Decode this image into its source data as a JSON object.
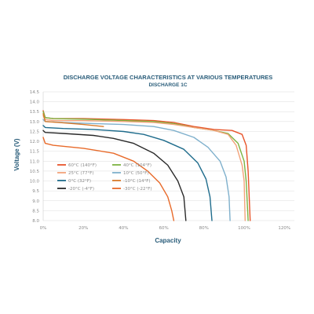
{
  "chart_data": {
    "type": "line",
    "title": "DISCHARGE VOLTAGE CHARACTERISTICS AT VARIOUS TEMPERATURES",
    "subtitle": "DISCHARGE 1C",
    "xlabel": "Capacity",
    "ylabel": "Voltage (V)",
    "xlim": [
      0,
      125
    ],
    "ylim": [
      8.0,
      14.5
    ],
    "x_ticks": [
      "0%",
      "20%",
      "40%",
      "60%",
      "80%",
      "100%",
      "120%"
    ],
    "x_tick_values": [
      0,
      20,
      40,
      60,
      80,
      100,
      120
    ],
    "y_ticks": [
      "8.0",
      "8.5",
      "9.0",
      "9.5",
      "10.0",
      "10.5",
      "11.0",
      "11.5",
      "12.0",
      "12.5",
      "13.0",
      "13.5",
      "14.0",
      "14.5"
    ],
    "y_tick_values": [
      8.0,
      8.5,
      9.0,
      9.5,
      10.0,
      10.5,
      11.0,
      11.5,
      12.0,
      12.5,
      13.0,
      13.5,
      14.0,
      14.5
    ],
    "grid": "horizontal",
    "legend_position": "bottom-left",
    "series": [
      {
        "name": "60°C (140°F)",
        "color": "#e8542a",
        "points": [
          [
            0,
            13.55
          ],
          [
            1,
            13.2
          ],
          [
            5,
            13.15
          ],
          [
            20,
            13.15
          ],
          [
            40,
            13.1
          ],
          [
            55,
            13.05
          ],
          [
            65,
            12.95
          ],
          [
            75,
            12.75
          ],
          [
            85,
            12.6
          ],
          [
            94,
            12.55
          ],
          [
            99,
            12.35
          ],
          [
            101,
            11.8
          ],
          [
            102,
            10.5
          ],
          [
            103,
            8.0
          ]
        ]
      },
      {
        "name": "40°C (104°F)",
        "color": "#7db342",
        "points": [
          [
            0,
            13.5
          ],
          [
            1,
            13.2
          ],
          [
            5,
            13.15
          ],
          [
            20,
            13.12
          ],
          [
            40,
            13.05
          ],
          [
            55,
            13.0
          ],
          [
            65,
            12.9
          ],
          [
            75,
            12.7
          ],
          [
            85,
            12.55
          ],
          [
            92,
            12.4
          ],
          [
            97,
            11.9
          ],
          [
            100,
            11.0
          ],
          [
            101,
            10.0
          ],
          [
            102,
            8.0
          ]
        ]
      },
      {
        "name": "25°C (77°F)",
        "color": "#f3a37a",
        "points": [
          [
            0,
            13.3
          ],
          [
            1,
            13.1
          ],
          [
            5,
            13.05
          ],
          [
            20,
            13.05
          ],
          [
            40,
            13.0
          ],
          [
            55,
            12.95
          ],
          [
            65,
            12.85
          ],
          [
            75,
            12.7
          ],
          [
            85,
            12.55
          ],
          [
            92,
            12.35
          ],
          [
            96,
            11.8
          ],
          [
            99,
            10.8
          ],
          [
            100,
            10.0
          ],
          [
            100.5,
            8.0
          ]
        ]
      },
      {
        "name": "10°C (50°F)",
        "color": "#7fb0cc",
        "points": [
          [
            0,
            13.1
          ],
          [
            1,
            13.0
          ],
          [
            10,
            12.95
          ],
          [
            25,
            12.9
          ],
          [
            40,
            12.85
          ],
          [
            55,
            12.75
          ],
          [
            65,
            12.55
          ],
          [
            75,
            12.2
          ],
          [
            82,
            11.7
          ],
          [
            88,
            11.0
          ],
          [
            91,
            10.2
          ],
          [
            92.5,
            9.2
          ],
          [
            93,
            8.0
          ]
        ]
      },
      {
        "name": "0°C (32°F)",
        "color": "#1f6c8c",
        "points": [
          [
            0,
            12.8
          ],
          [
            1,
            12.7
          ],
          [
            10,
            12.65
          ],
          [
            25,
            12.6
          ],
          [
            40,
            12.5
          ],
          [
            50,
            12.35
          ],
          [
            60,
            12.05
          ],
          [
            70,
            11.6
          ],
          [
            77,
            10.9
          ],
          [
            81,
            10.1
          ],
          [
            83,
            9.2
          ],
          [
            84,
            8.0
          ]
        ]
      },
      {
        "name": "-10°C (14°F)",
        "color": "#d97a2a",
        "points": [
          [
            0,
            13.4
          ],
          [
            1,
            13.0
          ],
          [
            8,
            12.95
          ],
          [
            20,
            12.85
          ],
          [
            30,
            12.75
          ]
        ]
      },
      {
        "name": "-20°C (-4°F)",
        "color": "#2a2a2a",
        "points": [
          [
            0,
            12.55
          ],
          [
            1,
            12.45
          ],
          [
            10,
            12.4
          ],
          [
            25,
            12.3
          ],
          [
            35,
            12.15
          ],
          [
            45,
            11.9
          ],
          [
            55,
            11.4
          ],
          [
            62,
            10.8
          ],
          [
            67,
            10.0
          ],
          [
            70,
            9.2
          ],
          [
            71,
            8.0
          ]
        ]
      },
      {
        "name": "-30°C (-22°F)",
        "color": "#e86a2a",
        "points": [
          [
            0,
            12.2
          ],
          [
            1,
            11.9
          ],
          [
            5,
            11.8
          ],
          [
            20,
            11.65
          ],
          [
            35,
            11.4
          ],
          [
            45,
            11.0
          ],
          [
            52,
            10.5
          ],
          [
            58,
            9.9
          ],
          [
            62,
            9.2
          ],
          [
            64,
            8.5
          ],
          [
            65,
            8.0
          ]
        ]
      }
    ]
  }
}
